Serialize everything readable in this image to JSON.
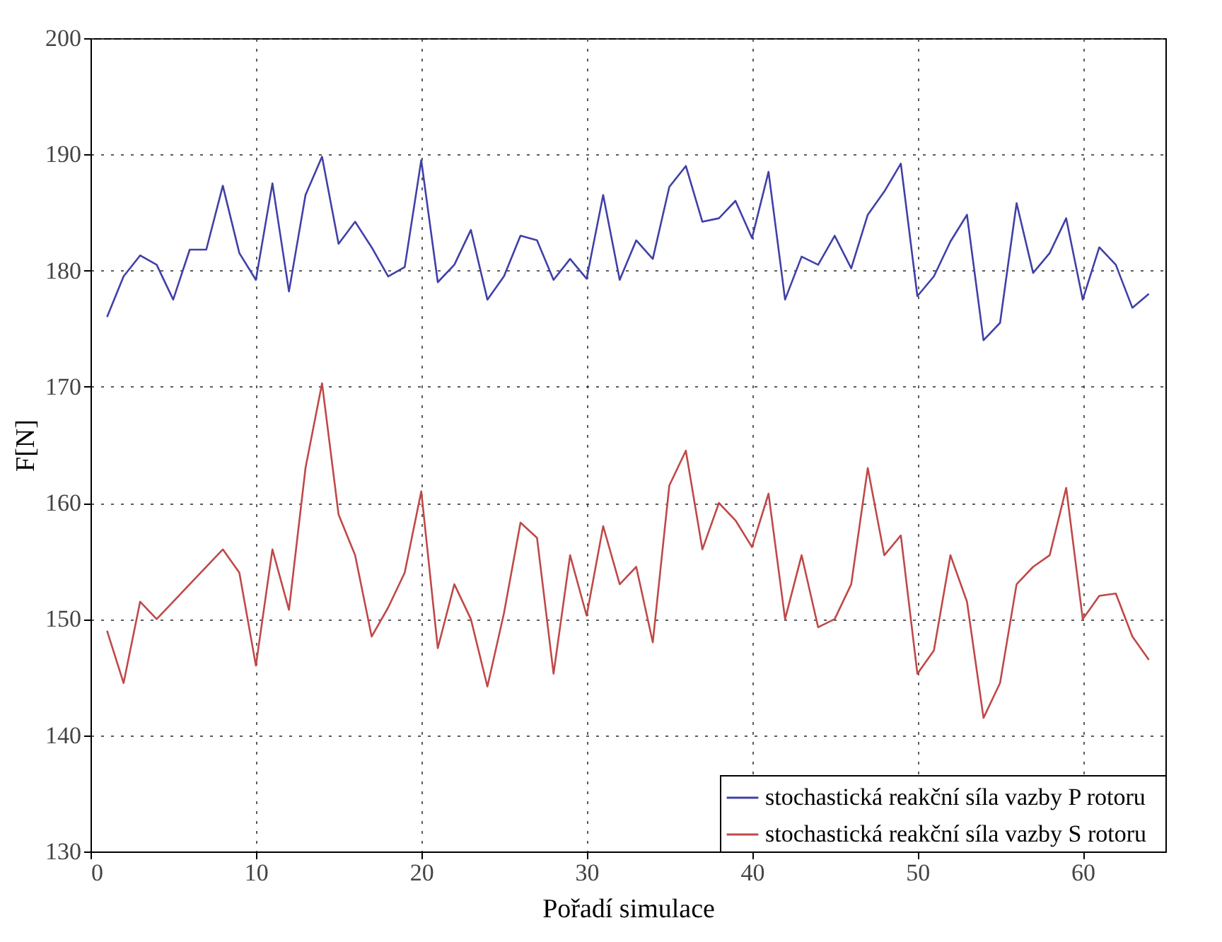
{
  "chart_data": {
    "type": "line",
    "xlabel": "Pořadí simulace",
    "ylabel": "F[N]",
    "xlim": [
      0,
      65
    ],
    "xticks": [
      0,
      10,
      20,
      30,
      40,
      50,
      60
    ],
    "ylim": [
      130,
      200
    ],
    "yticks": [
      130,
      140,
      150,
      160,
      170,
      180,
      190,
      200
    ],
    "grid": true,
    "legend": "bottom right",
    "line_style": "solid",
    "series": [
      {
        "name": "stochastická reakční síla vazby P rotoru",
        "color": "#4040a8",
        "x": [
          1,
          2,
          3,
          4,
          5,
          6,
          7,
          8,
          9,
          10,
          11,
          12,
          13,
          14,
          15,
          16,
          17,
          18,
          19,
          20,
          21,
          22,
          23,
          24,
          25,
          26,
          27,
          28,
          29,
          30,
          31,
          32,
          33,
          34,
          35,
          36,
          37,
          38,
          39,
          40,
          41,
          42,
          43,
          44,
          45,
          46,
          47,
          48,
          49,
          50,
          51,
          52,
          53,
          54,
          55,
          56,
          57,
          58,
          59,
          60,
          61,
          62,
          63,
          64
        ],
        "values": [
          176,
          179.5,
          181.3,
          180.5,
          177.5,
          181.8,
          181.8,
          187.3,
          181.5,
          179.2,
          187.5,
          178.2,
          186.5,
          189.8,
          182.3,
          184.2,
          182,
          179.5,
          180.3,
          189.5,
          179,
          180.5,
          183.5,
          177.5,
          179.5,
          183,
          182.6,
          179.2,
          181,
          179.3,
          186.5,
          179.2,
          182.6,
          181,
          187.2,
          189,
          184.2,
          184.5,
          186,
          182.8,
          188.5,
          177.5,
          181.2,
          180.5,
          183,
          180.2,
          184.8,
          186.8,
          189.2,
          177.8,
          179.5,
          182.5,
          184.8,
          174,
          175.5,
          185.8,
          179.8,
          181.5,
          184.5,
          177.5,
          182,
          180.5,
          176.8,
          178
        ]
      },
      {
        "name": "stochastická reakční  síla vazby  S rotoru",
        "color": "#c04848",
        "x": [
          1,
          2,
          3,
          4,
          8,
          9,
          10,
          11,
          12,
          13,
          14,
          15,
          16,
          17,
          18,
          19,
          20,
          21,
          22,
          23,
          24,
          25,
          26,
          27,
          28,
          29,
          30,
          31,
          32,
          33,
          34,
          35,
          36,
          37,
          38,
          39,
          40,
          41,
          42,
          43,
          44,
          45,
          46,
          47,
          48,
          49,
          50,
          51,
          52,
          53,
          54,
          55,
          56,
          57,
          58,
          59,
          60,
          61,
          62,
          63,
          64
        ],
        "values": [
          149,
          144.5,
          151.5,
          150,
          156,
          154,
          146,
          156,
          150.8,
          163,
          170.3,
          159,
          155.5,
          148.5,
          151,
          154,
          161,
          147.5,
          153,
          150,
          144.2,
          150.5,
          158.3,
          157,
          145.3,
          155.5,
          150.3,
          158,
          153,
          154.5,
          148,
          161.5,
          164.5,
          156,
          160,
          158.5,
          156.2,
          160.8,
          150,
          155.5,
          149.3,
          150,
          153,
          163,
          155.5,
          157.2,
          145.3,
          147.3,
          155.5,
          151.5,
          141.5,
          144.5,
          153,
          154.5,
          155.5,
          161.3,
          150,
          152,
          152.2,
          148.5,
          146.5
        ]
      }
    ]
  }
}
